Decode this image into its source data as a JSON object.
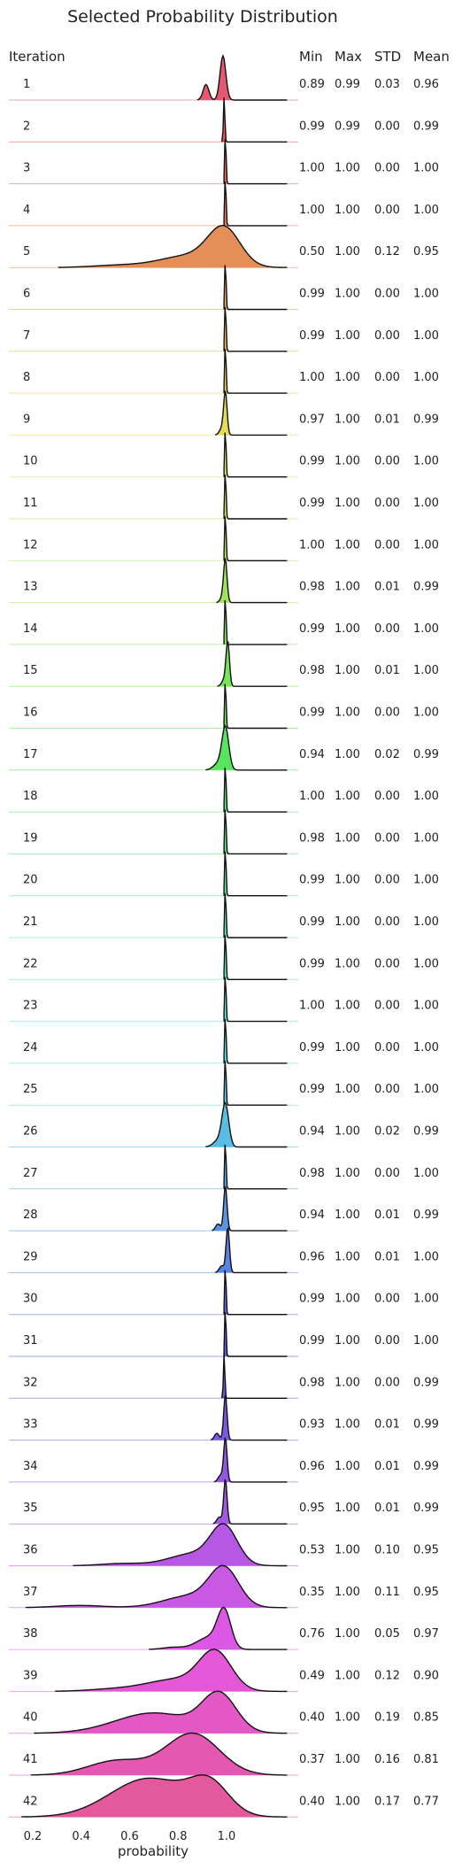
{
  "chart_data": {
    "type": "ridgeline",
    "title": "Selected Probability Distribution",
    "row_header": "Iteration",
    "stat_headers": [
      "Min",
      "Max",
      "STD",
      "Mean"
    ],
    "xlabel": "probability",
    "xlim": [
      0.12,
      1.25
    ],
    "x_ticks": [
      "0.2",
      "0.4",
      "0.6",
      "0.8",
      "1.0"
    ],
    "rows": [
      {
        "label": "1",
        "min": "0.89",
        "max": "0.99",
        "std": "0.03",
        "mean": "0.96"
      },
      {
        "label": "2",
        "min": "0.99",
        "max": "0.99",
        "std": "0.00",
        "mean": "0.99"
      },
      {
        "label": "3",
        "min": "1.00",
        "max": "1.00",
        "std": "0.00",
        "mean": "1.00"
      },
      {
        "label": "4",
        "min": "1.00",
        "max": "1.00",
        "std": "0.00",
        "mean": "1.00"
      },
      {
        "label": "5",
        "min": "0.50",
        "max": "1.00",
        "std": "0.12",
        "mean": "0.95"
      },
      {
        "label": "6",
        "min": "0.99",
        "max": "1.00",
        "std": "0.00",
        "mean": "1.00"
      },
      {
        "label": "7",
        "min": "0.99",
        "max": "1.00",
        "std": "0.00",
        "mean": "1.00"
      },
      {
        "label": "8",
        "min": "1.00",
        "max": "1.00",
        "std": "0.00",
        "mean": "1.00"
      },
      {
        "label": "9",
        "min": "0.97",
        "max": "1.00",
        "std": "0.01",
        "mean": "0.99"
      },
      {
        "label": "10",
        "min": "0.99",
        "max": "1.00",
        "std": "0.00",
        "mean": "1.00"
      },
      {
        "label": "11",
        "min": "0.99",
        "max": "1.00",
        "std": "0.00",
        "mean": "1.00"
      },
      {
        "label": "12",
        "min": "1.00",
        "max": "1.00",
        "std": "0.00",
        "mean": "1.00"
      },
      {
        "label": "13",
        "min": "0.98",
        "max": "1.00",
        "std": "0.01",
        "mean": "0.99"
      },
      {
        "label": "14",
        "min": "0.99",
        "max": "1.00",
        "std": "0.00",
        "mean": "1.00"
      },
      {
        "label": "15",
        "min": "0.98",
        "max": "1.00",
        "std": "0.01",
        "mean": "1.00"
      },
      {
        "label": "16",
        "min": "0.99",
        "max": "1.00",
        "std": "0.00",
        "mean": "1.00"
      },
      {
        "label": "17",
        "min": "0.94",
        "max": "1.00",
        "std": "0.02",
        "mean": "0.99"
      },
      {
        "label": "18",
        "min": "1.00",
        "max": "1.00",
        "std": "0.00",
        "mean": "1.00"
      },
      {
        "label": "19",
        "min": "0.98",
        "max": "1.00",
        "std": "0.00",
        "mean": "1.00"
      },
      {
        "label": "20",
        "min": "0.99",
        "max": "1.00",
        "std": "0.00",
        "mean": "1.00"
      },
      {
        "label": "21",
        "min": "0.99",
        "max": "1.00",
        "std": "0.00",
        "mean": "1.00"
      },
      {
        "label": "22",
        "min": "0.99",
        "max": "1.00",
        "std": "0.00",
        "mean": "1.00"
      },
      {
        "label": "23",
        "min": "1.00",
        "max": "1.00",
        "std": "0.00",
        "mean": "1.00"
      },
      {
        "label": "24",
        "min": "0.99",
        "max": "1.00",
        "std": "0.00",
        "mean": "1.00"
      },
      {
        "label": "25",
        "min": "0.99",
        "max": "1.00",
        "std": "0.00",
        "mean": "1.00"
      },
      {
        "label": "26",
        "min": "0.94",
        "max": "1.00",
        "std": "0.02",
        "mean": "0.99"
      },
      {
        "label": "27",
        "min": "0.98",
        "max": "1.00",
        "std": "0.00",
        "mean": "1.00"
      },
      {
        "label": "28",
        "min": "0.94",
        "max": "1.00",
        "std": "0.01",
        "mean": "0.99"
      },
      {
        "label": "29",
        "min": "0.96",
        "max": "1.00",
        "std": "0.01",
        "mean": "1.00"
      },
      {
        "label": "30",
        "min": "0.99",
        "max": "1.00",
        "std": "0.00",
        "mean": "1.00"
      },
      {
        "label": "31",
        "min": "0.99",
        "max": "1.00",
        "std": "0.00",
        "mean": "1.00"
      },
      {
        "label": "32",
        "min": "0.98",
        "max": "1.00",
        "std": "0.00",
        "mean": "0.99"
      },
      {
        "label": "33",
        "min": "0.93",
        "max": "1.00",
        "std": "0.01",
        "mean": "0.99"
      },
      {
        "label": "34",
        "min": "0.96",
        "max": "1.00",
        "std": "0.01",
        "mean": "0.99"
      },
      {
        "label": "35",
        "min": "0.95",
        "max": "1.00",
        "std": "0.01",
        "mean": "0.99"
      },
      {
        "label": "36",
        "min": "0.53",
        "max": "1.00",
        "std": "0.10",
        "mean": "0.95"
      },
      {
        "label": "37",
        "min": "0.35",
        "max": "1.00",
        "std": "0.11",
        "mean": "0.95"
      },
      {
        "label": "38",
        "min": "0.76",
        "max": "1.00",
        "std": "0.05",
        "mean": "0.97"
      },
      {
        "label": "39",
        "min": "0.49",
        "max": "1.00",
        "std": "0.12",
        "mean": "0.90"
      },
      {
        "label": "40",
        "min": "0.40",
        "max": "1.00",
        "std": "0.19",
        "mean": "0.85"
      },
      {
        "label": "41",
        "min": "0.37",
        "max": "1.00",
        "std": "0.16",
        "mean": "0.81"
      },
      {
        "label": "42",
        "min": "0.40",
        "max": "1.00",
        "std": "0.17",
        "mean": "0.77"
      }
    ]
  }
}
